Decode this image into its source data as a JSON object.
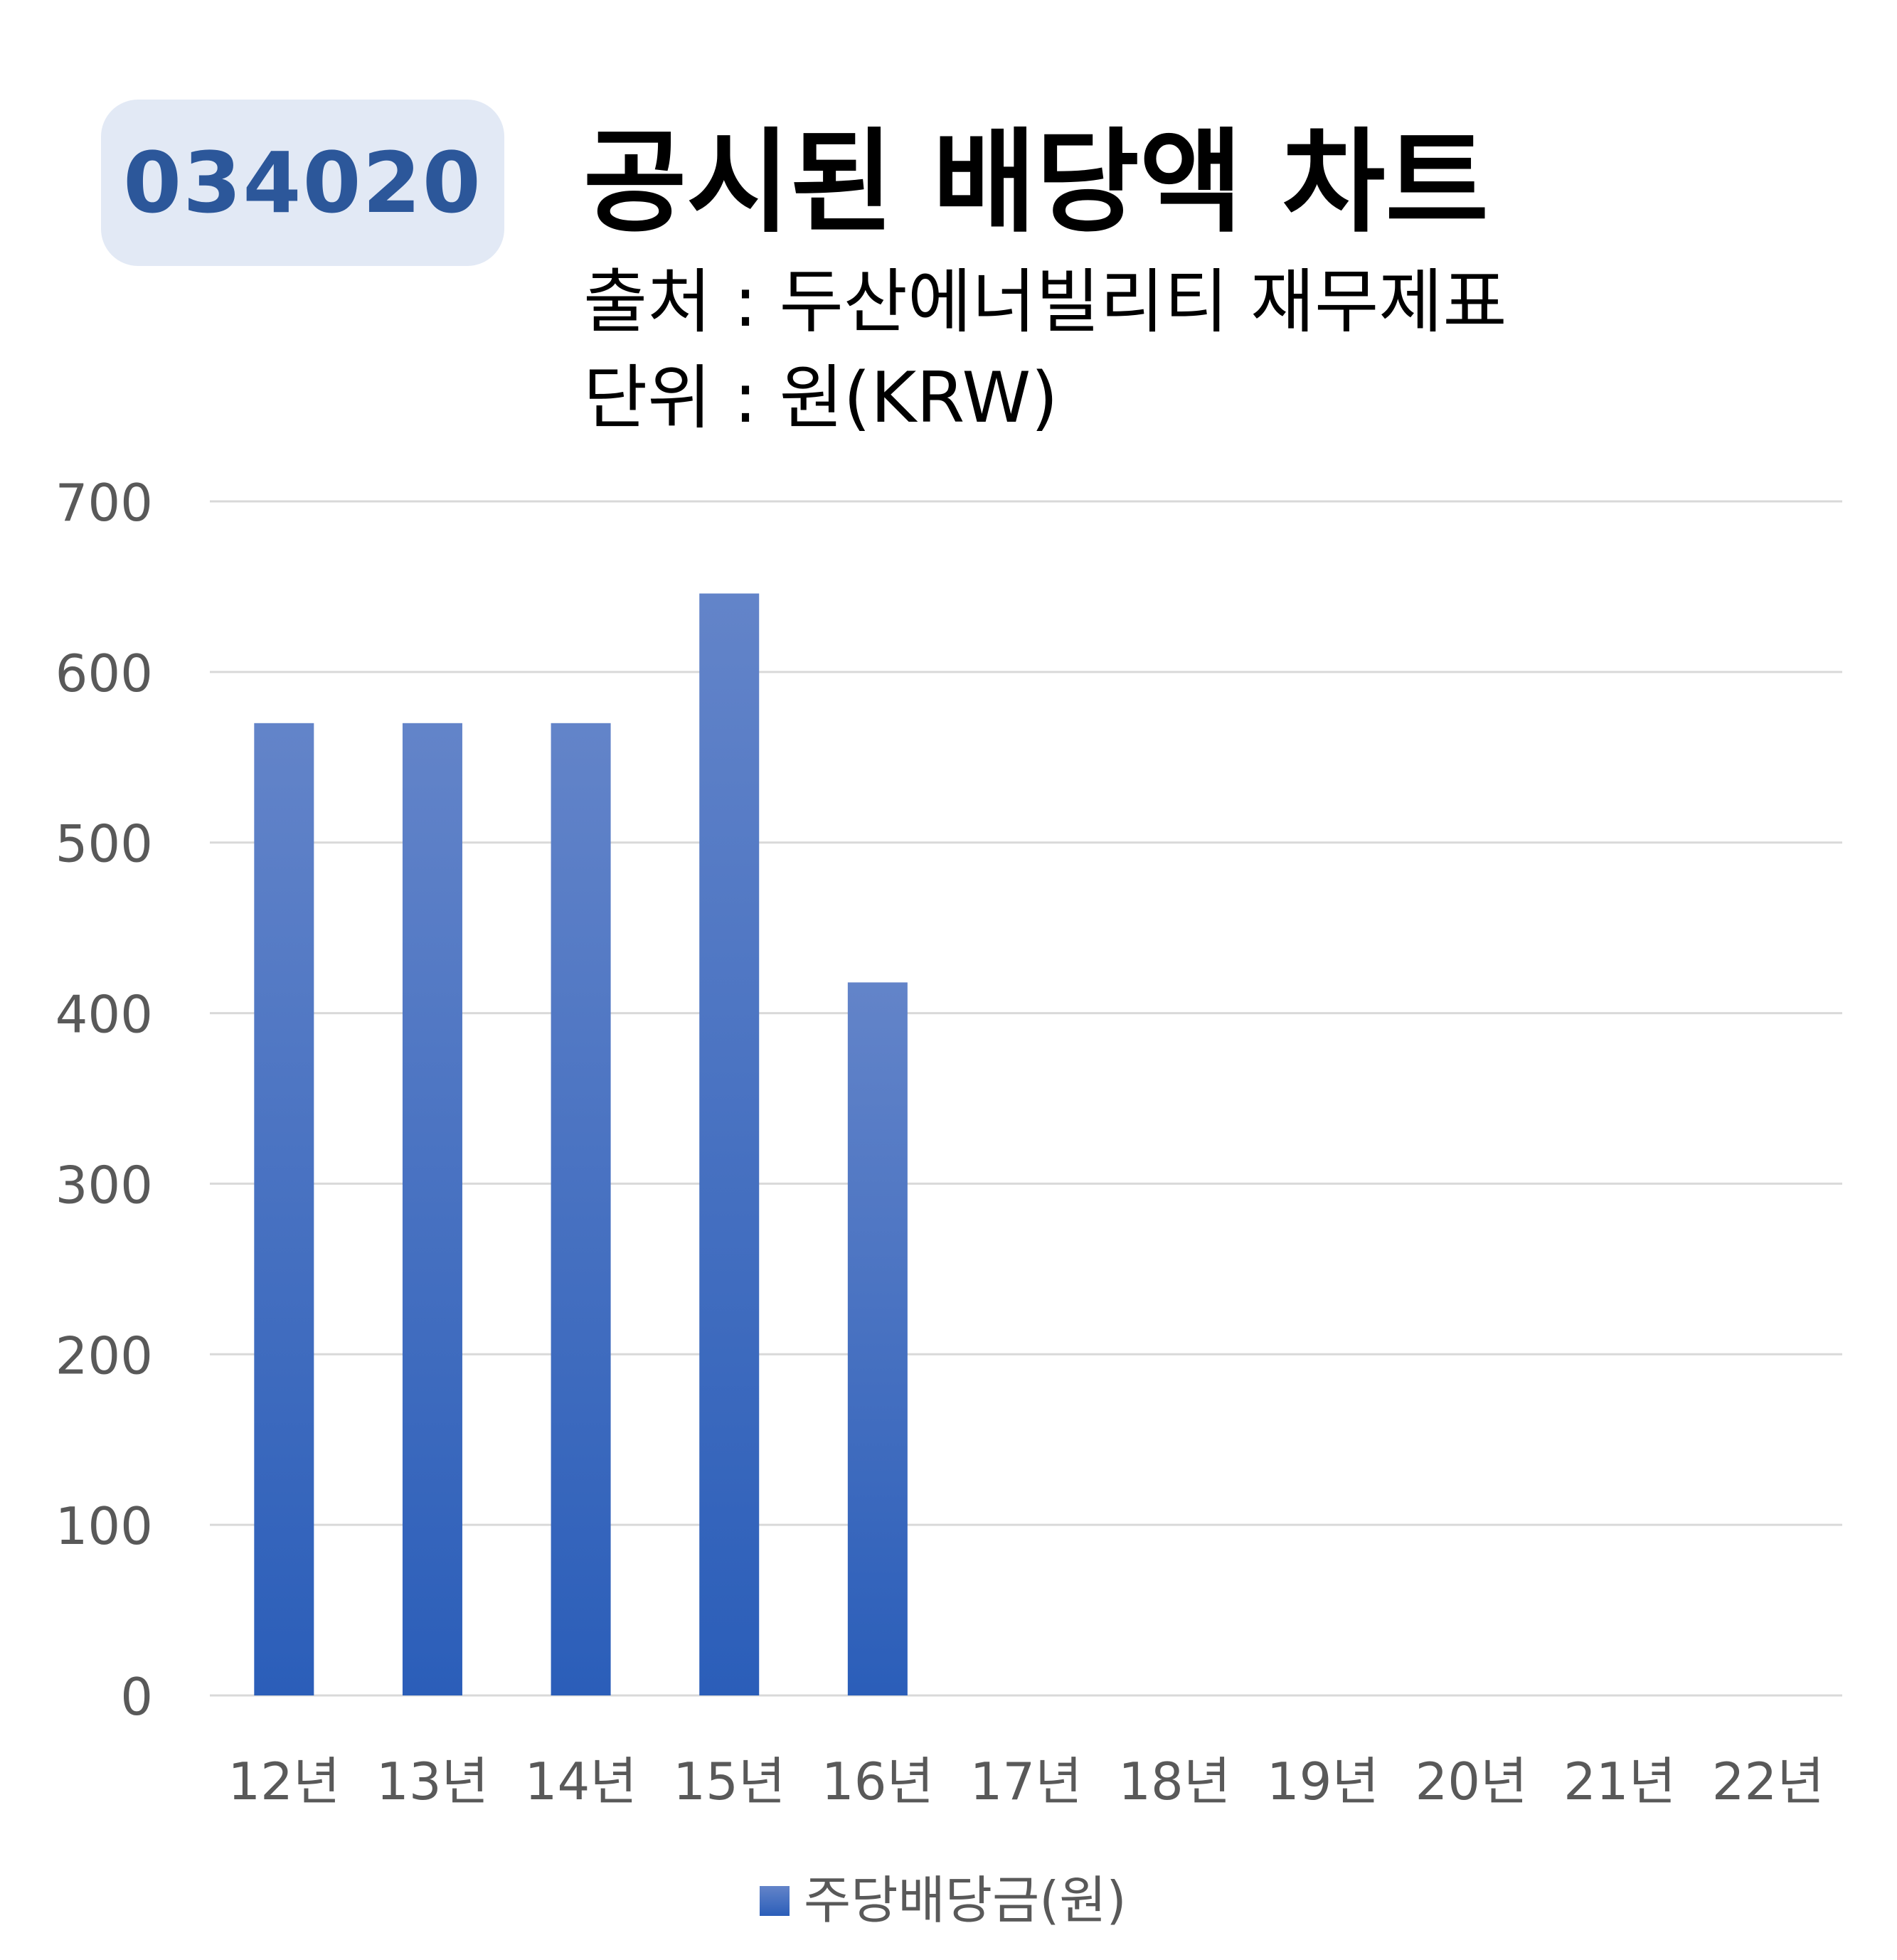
{
  "badge": {
    "code": "034020"
  },
  "header": {
    "title": "공시된 배당액 차트",
    "source": "출처 : 두산에너빌리티 재무제표",
    "unit": "단위 : 원(KRW)"
  },
  "colors": {
    "badge_bg": "#e2e9f5",
    "badge_text": "#2c579a",
    "bar_top": "#6384c9",
    "bar_bottom": "#2b5eb9",
    "grid": "#d9d9d9",
    "axis_text": "#595959"
  },
  "chart_data": {
    "type": "bar",
    "categories": [
      "12년",
      "13년",
      "14년",
      "15년",
      "16년",
      "17년",
      "18년",
      "19년",
      "20년",
      "21년",
      "22년"
    ],
    "series": [
      {
        "name": "주당배당금(원)",
        "values": [
          570,
          570,
          570,
          646,
          418,
          null,
          null,
          null,
          null,
          null,
          null
        ]
      }
    ],
    "ylim": [
      0,
      700
    ],
    "yticks": [
      "0",
      "100",
      "200",
      "300",
      "400",
      "500",
      "600",
      "700"
    ],
    "grid": true,
    "legend": "bottom"
  }
}
